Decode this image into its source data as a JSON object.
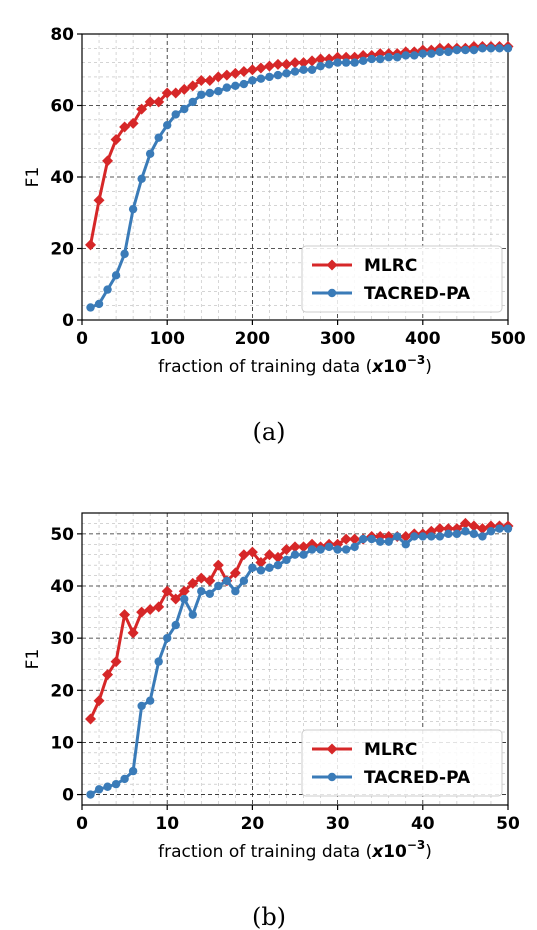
{
  "chart_data": [
    {
      "type": "line",
      "caption": "(a)",
      "xlabel": "fraction of training data",
      "xlabel_unit_prefix": "x10",
      "xlabel_unit_exp": "−3",
      "ylabel": "F1",
      "xlim": [
        0,
        500
      ],
      "ylim": [
        0,
        80
      ],
      "xticks": [
        0,
        100,
        200,
        300,
        400,
        500
      ],
      "yticks": [
        0,
        20,
        40,
        60,
        80
      ],
      "grid": true,
      "legend_position": "lower-right",
      "series": [
        {
          "name": "MLRC",
          "color": "#d62728",
          "marker": "diamond",
          "x": [
            10,
            20,
            30,
            40,
            50,
            60,
            70,
            80,
            90,
            100,
            110,
            120,
            130,
            140,
            150,
            160,
            170,
            180,
            190,
            200,
            210,
            220,
            230,
            240,
            250,
            260,
            270,
            280,
            290,
            300,
            310,
            320,
            330,
            340,
            350,
            360,
            370,
            380,
            390,
            400,
            410,
            420,
            430,
            440,
            450,
            460,
            470,
            480,
            490,
            500
          ],
          "y": [
            21,
            33.5,
            44.5,
            50.5,
            54,
            55,
            59,
            61,
            61,
            63.5,
            63.5,
            64.5,
            65.5,
            67,
            67,
            68,
            68.5,
            69,
            69.5,
            70,
            70.5,
            71,
            71.5,
            71.5,
            72,
            72,
            72.5,
            73,
            73,
            73.5,
            73.5,
            73.5,
            74,
            74,
            74.5,
            74.5,
            74.5,
            75,
            75,
            75.5,
            75.5,
            76,
            76,
            76,
            76,
            76.5,
            76.5,
            76.5,
            76.5,
            76.5
          ]
        },
        {
          "name": "TACRED-PA",
          "color": "#3a7bb8",
          "marker": "circle",
          "x": [
            10,
            20,
            30,
            40,
            50,
            60,
            70,
            80,
            90,
            100,
            110,
            120,
            130,
            140,
            150,
            160,
            170,
            180,
            190,
            200,
            210,
            220,
            230,
            240,
            250,
            260,
            270,
            280,
            290,
            300,
            310,
            320,
            330,
            340,
            350,
            360,
            370,
            380,
            390,
            400,
            410,
            420,
            430,
            440,
            450,
            460,
            470,
            480,
            490,
            500
          ],
          "y": [
            3.5,
            4.5,
            8.5,
            12.5,
            18.5,
            31,
            39.5,
            46.5,
            51,
            54.5,
            57.5,
            59,
            61,
            63,
            63.5,
            64,
            65,
            65.5,
            66,
            67,
            67.5,
            68,
            68.5,
            69,
            69.5,
            70,
            70,
            71,
            71.5,
            72,
            72,
            72,
            72.5,
            73,
            73,
            73.5,
            73.5,
            74,
            74,
            74.5,
            74.5,
            75,
            75,
            75.5,
            75.5,
            75.5,
            76,
            76,
            76,
            76
          ]
        }
      ]
    },
    {
      "type": "line",
      "caption": "(b)",
      "xlabel": "fraction of training data",
      "xlabel_unit_prefix": "x10",
      "xlabel_unit_exp": "−3",
      "ylabel": "F1",
      "xlim": [
        0,
        50
      ],
      "ylim": [
        -2,
        54
      ],
      "xticks": [
        0,
        10,
        20,
        30,
        40,
        50
      ],
      "yticks": [
        0,
        10,
        20,
        30,
        40,
        50
      ],
      "grid": true,
      "legend_position": "lower-right",
      "series": [
        {
          "name": "MLRC",
          "color": "#d62728",
          "marker": "diamond",
          "x": [
            1,
            2,
            3,
            4,
            5,
            6,
            7,
            8,
            9,
            10,
            11,
            12,
            13,
            14,
            15,
            16,
            17,
            18,
            19,
            20,
            21,
            22,
            23,
            24,
            25,
            26,
            27,
            28,
            29,
            30,
            31,
            32,
            33,
            34,
            35,
            36,
            37,
            38,
            39,
            40,
            41,
            42,
            43,
            44,
            45,
            46,
            47,
            48,
            49,
            50
          ],
          "y": [
            14.5,
            18,
            23,
            25.5,
            34.5,
            31,
            35,
            35.5,
            36,
            39,
            37.5,
            39,
            40.5,
            41.5,
            41,
            44,
            41,
            42.5,
            46,
            46.5,
            44.5,
            46,
            45.5,
            47,
            47.5,
            47.5,
            48,
            47.5,
            48,
            48,
            49,
            49,
            49,
            49.5,
            49.5,
            49.5,
            49.5,
            49.5,
            50,
            50,
            50.5,
            51,
            51,
            51,
            52,
            51.5,
            51,
            51.5,
            51.5,
            51.5
          ]
        },
        {
          "name": "TACRED-PA",
          "color": "#3a7bb8",
          "marker": "circle",
          "x": [
            1,
            2,
            3,
            4,
            5,
            6,
            7,
            8,
            9,
            10,
            11,
            12,
            13,
            14,
            15,
            16,
            17,
            18,
            19,
            20,
            21,
            22,
            23,
            24,
            25,
            26,
            27,
            28,
            29,
            30,
            31,
            32,
            33,
            34,
            35,
            36,
            37,
            38,
            39,
            40,
            41,
            42,
            43,
            44,
            45,
            46,
            47,
            48,
            49,
            50
          ],
          "y": [
            0,
            1,
            1.5,
            2,
            3,
            4.5,
            17,
            18,
            25.5,
            30,
            32.5,
            37.5,
            34.5,
            39,
            38.5,
            40,
            41,
            39,
            41,
            43.5,
            43,
            43.5,
            44,
            45,
            46,
            46,
            47,
            47,
            47.5,
            47,
            47,
            47.5,
            49,
            49,
            48.5,
            48.5,
            49.5,
            48,
            49.5,
            49.5,
            49.5,
            49.5,
            50,
            50,
            50.5,
            50,
            49.5,
            50.5,
            51,
            51
          ]
        }
      ]
    }
  ]
}
